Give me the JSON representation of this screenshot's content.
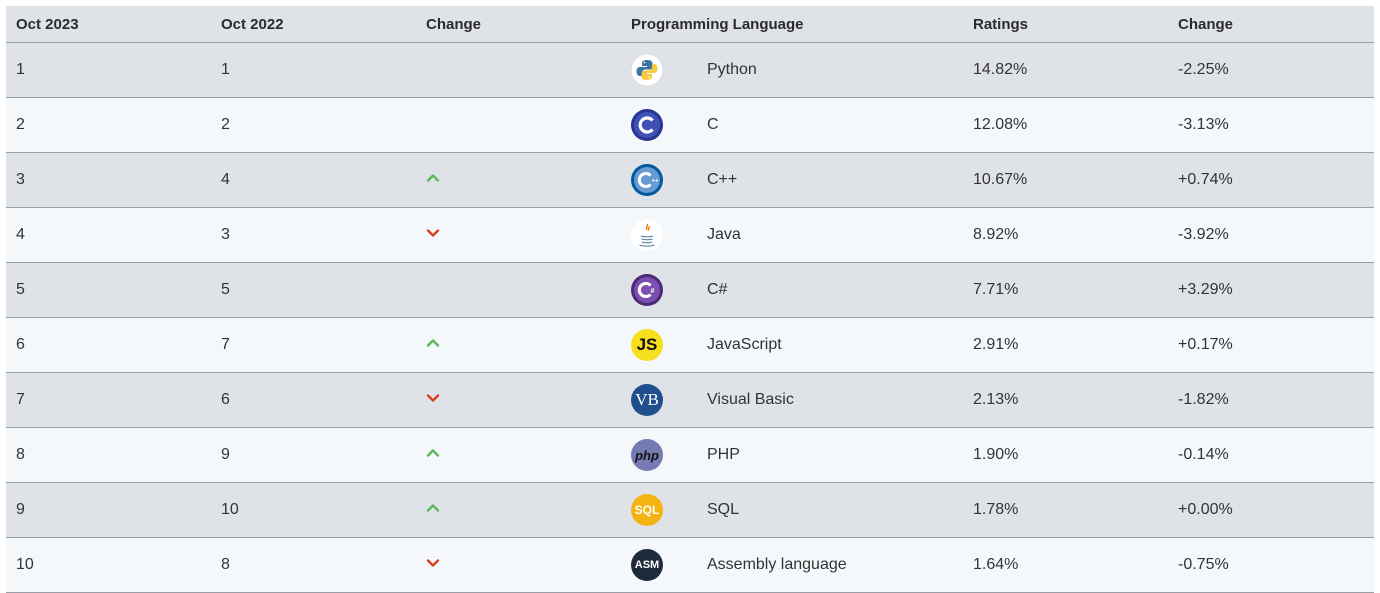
{
  "header": {
    "col_oct2023": "Oct 2023",
    "col_oct2022": "Oct 2022",
    "col_change": "Change",
    "col_language": "Programming Language",
    "col_ratings": "Ratings",
    "col_change2": "Change"
  },
  "rows": [
    {
      "rank2023": "1",
      "rank2022": "1",
      "trend": "none",
      "language": "Python",
      "icon": "python-logo-icon",
      "ratings": "14.82%",
      "change": "-2.25%"
    },
    {
      "rank2023": "2",
      "rank2022": "2",
      "trend": "none",
      "language": "C",
      "icon": "c-logo-icon",
      "ratings": "12.08%",
      "change": "-3.13%"
    },
    {
      "rank2023": "3",
      "rank2022": "4",
      "trend": "up",
      "language": "C++",
      "icon": "cpp-logo-icon",
      "ratings": "10.67%",
      "change": "+0.74%"
    },
    {
      "rank2023": "4",
      "rank2022": "3",
      "trend": "down",
      "language": "Java",
      "icon": "java-logo-icon",
      "ratings": "8.92%",
      "change": "-3.92%"
    },
    {
      "rank2023": "5",
      "rank2022": "5",
      "trend": "none",
      "language": "C#",
      "icon": "csharp-logo-icon",
      "ratings": "7.71%",
      "change": "+3.29%"
    },
    {
      "rank2023": "6",
      "rank2022": "7",
      "trend": "up",
      "language": "JavaScript",
      "icon": "javascript-logo-icon",
      "logo_text": "JS",
      "ratings": "2.91%",
      "change": "+0.17%"
    },
    {
      "rank2023": "7",
      "rank2022": "6",
      "trend": "down",
      "language": "Visual Basic",
      "icon": "visual-basic-logo-icon",
      "logo_text": "VB",
      "ratings": "2.13%",
      "change": "-1.82%"
    },
    {
      "rank2023": "8",
      "rank2022": "9",
      "trend": "up",
      "language": "PHP",
      "icon": "php-logo-icon",
      "logo_text": "php",
      "ratings": "1.90%",
      "change": "-0.14%"
    },
    {
      "rank2023": "9",
      "rank2022": "10",
      "trend": "up",
      "language": "SQL",
      "icon": "sql-logo-icon",
      "logo_text": "SQL",
      "ratings": "1.78%",
      "change": "+0.00%"
    },
    {
      "rank2023": "10",
      "rank2022": "8",
      "trend": "down",
      "language": "Assembly language",
      "icon": "assembly-logo-icon",
      "logo_text": "ASM",
      "ratings": "1.64%",
      "change": "-0.75%"
    }
  ],
  "colors": {
    "up_arrow": "#5cb85c",
    "down_arrow": "#d9411e",
    "header_bg": "#dfe2e6",
    "odd_row_bg": "#dfe2e6",
    "even_row_bg": "#f4f8fb"
  }
}
